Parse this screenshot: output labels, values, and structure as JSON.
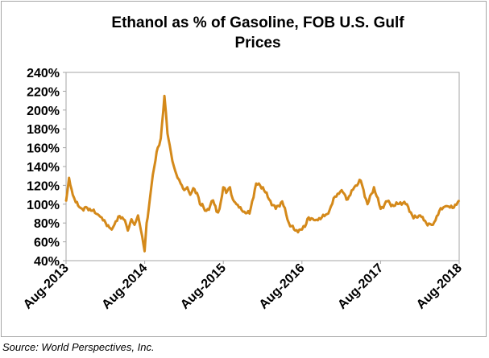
{
  "source_note": "Source: World Perspectives, Inc.",
  "chart_data": {
    "type": "line",
    "title": "Ethanol as %  of Gasoline, FOB U.S. Gulf Prices",
    "title_lines": [
      "Ethanol as %  of Gasoline, FOB U.S. Gulf",
      "Prices"
    ],
    "xlabel": "",
    "ylabel": "",
    "ylim": [
      40,
      240
    ],
    "y_ticks": [
      40,
      60,
      80,
      100,
      120,
      140,
      160,
      180,
      200,
      220,
      240
    ],
    "y_tick_labels": [
      "40%",
      "60%",
      "80%",
      "100%",
      "120%",
      "140%",
      "160%",
      "180%",
      "200%",
      "220%",
      "240%"
    ],
    "x_range": [
      "2013-08",
      "2018-08"
    ],
    "x_tick_labels": [
      "Aug-2013",
      "Aug-2014",
      "Aug-2015",
      "Aug-2016",
      "Aug-2017",
      "Aug-2018"
    ],
    "grid": false,
    "legend": "none",
    "line_color": "#d4891a",
    "series": [
      {
        "x": [
          "2013-08-01",
          "2013-08-15",
          "2013-09-01",
          "2013-09-15",
          "2013-10-01",
          "2013-10-15",
          "2013-11-01",
          "2013-12-01",
          "2014-01-01",
          "2014-02-01",
          "2014-03-01",
          "2014-04-01",
          "2014-05-01",
          "2014-05-15",
          "2014-06-01",
          "2014-06-15",
          "2014-07-01",
          "2014-07-15",
          "2014-08-01",
          "2014-08-10",
          "2014-08-20",
          "2014-09-01",
          "2014-09-15",
          "2014-10-01",
          "2014-10-15",
          "2014-11-01",
          "2014-11-15",
          "2014-12-01",
          "2014-12-15",
          "2015-01-01",
          "2015-01-15",
          "2015-02-01",
          "2015-02-15",
          "2015-03-01",
          "2015-03-15",
          "2015-04-01",
          "2015-04-15",
          "2015-05-01",
          "2015-05-15",
          "2015-06-01",
          "2015-06-15",
          "2015-07-01",
          "2015-07-15",
          "2015-08-01",
          "2015-08-15",
          "2015-09-01",
          "2015-09-15",
          "2015-10-01",
          "2015-11-01",
          "2015-12-01",
          "2016-01-01",
          "2016-02-01",
          "2016-03-01",
          "2016-04-01",
          "2016-05-01",
          "2016-06-01",
          "2016-07-01",
          "2016-08-01",
          "2016-08-15",
          "2016-09-01",
          "2016-10-01",
          "2016-11-01",
          "2016-12-01",
          "2017-01-01",
          "2017-02-01",
          "2017-03-01",
          "2017-04-01",
          "2017-05-01",
          "2017-06-01",
          "2017-07-01",
          "2017-08-01",
          "2017-09-01",
          "2017-10-01",
          "2017-11-01",
          "2017-12-01",
          "2018-01-01",
          "2018-02-01",
          "2018-03-01",
          "2018-04-01",
          "2018-05-01",
          "2018-06-01",
          "2018-07-01",
          "2018-08-01"
        ],
        "y": [
          103,
          128,
          110,
          102,
          97,
          95,
          97,
          93,
          88,
          80,
          73,
          87,
          83,
          72,
          84,
          78,
          88,
          72,
          50,
          80,
          95,
          118,
          140,
          160,
          170,
          215,
          175,
          155,
          140,
          128,
          122,
          115,
          118,
          110,
          117,
          112,
          100,
          97,
          93,
          98,
          104,
          92,
          95,
          118,
          112,
          118,
          105,
          100,
          92,
          90,
          122,
          118,
          105,
          95,
          103,
          80,
          72,
          73,
          76,
          86,
          83,
          86,
          90,
          108,
          115,
          105,
          118,
          125,
          100,
          118,
          95,
          103,
          98,
          102,
          100,
          85,
          88,
          80,
          78,
          93,
          98,
          96,
          104
        ]
      }
    ]
  }
}
